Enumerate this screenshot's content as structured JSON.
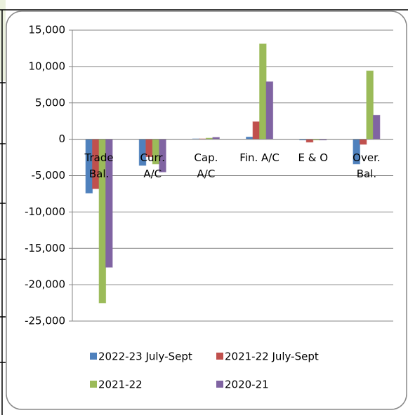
{
  "chart_data": {
    "type": "bar",
    "categories": [
      "Trade\nBal.",
      "Curr.\nA/C",
      "Cap.\nA/C",
      "Fin. A/C",
      "E & O",
      "Over.\nBal."
    ],
    "series": [
      {
        "name": "2022-23 July-Sept",
        "color": "#4f81bd",
        "values": [
          -7400,
          -3600,
          50,
          300,
          -100,
          -3400
        ]
      },
      {
        "name": "2021-22 July-Sept",
        "color": "#c0504d",
        "values": [
          -6800,
          -2400,
          50,
          2400,
          -400,
          -700
        ]
      },
      {
        "name": "2021-22",
        "color": "#9bbb59",
        "values": [
          -22500,
          -3400,
          150,
          13100,
          -100,
          9400
        ]
      },
      {
        "name": "2020-21",
        "color": "#8064a2",
        "values": [
          -17600,
          -4500,
          250,
          7900,
          -100,
          3300
        ]
      }
    ],
    "ylim": [
      -25000,
      15000
    ],
    "yticks": [
      {
        "value": -25000,
        "label": "-25,000"
      },
      {
        "value": -20000,
        "label": "-20,000"
      },
      {
        "value": -15000,
        "label": "-15,000"
      },
      {
        "value": -10000,
        "label": "-10,000"
      },
      {
        "value": -5000,
        "label": "-5,000"
      },
      0,
      {
        "value": 5000,
        "label": "5,000"
      },
      {
        "value": 10000,
        "label": "10,000"
      },
      {
        "value": 15000,
        "label": "15,000"
      }
    ],
    "grid": true
  }
}
